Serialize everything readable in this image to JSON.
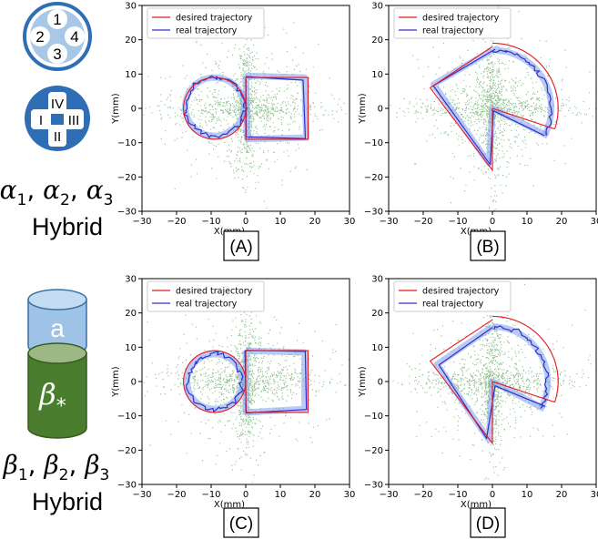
{
  "left_panel": {
    "top_group": {
      "small_circle_labels": [
        "1",
        "2",
        "3",
        "4"
      ],
      "large_circle_labels": [
        "IV",
        "I",
        "III",
        "II"
      ],
      "formula": {
        "base": "α",
        "subs": [
          "1",
          "2",
          "3"
        ]
      },
      "caption": "Hybrid",
      "colors": {
        "light_fill": "#a9c8e8",
        "dark_fill": "#2f6eb5"
      }
    },
    "bottom_group": {
      "small_cylinder_label": "a",
      "large_cylinder_label": {
        "base": "β",
        "sub": "*"
      },
      "formula": {
        "base": "β",
        "subs": [
          "1",
          "2",
          "3"
        ]
      },
      "caption": "Hybrid",
      "colors": {
        "small_top": "#c4dcf2",
        "small_body": "#9fc3e6",
        "large_top": "#9cb985",
        "large_body": "#4a7d2e"
      }
    }
  },
  "legend": {
    "desired": "desired trajectory",
    "real": "real trajectory"
  },
  "colors": {
    "desired": "#e8171e",
    "real": "#3030d0",
    "band": "#7f9ff0",
    "scatter": "#2a8a2a"
  },
  "chart_data": [
    {
      "id": "A",
      "panel_label": "(A)",
      "type": "line",
      "xlabel": "X(mm)",
      "ylabel": "Y(mm)",
      "xlim": [
        -30,
        30
      ],
      "ylim": [
        -30,
        30
      ],
      "xticks": [
        "−30",
        "−20",
        "−10",
        "0",
        "10",
        "20",
        "30"
      ],
      "yticks": [
        "−30",
        "−20",
        "−10",
        "0",
        "10",
        "20",
        "30"
      ],
      "legend_position": "top-left",
      "desired_trajectory": {
        "shape": "circle + square",
        "circle_center": [
          -9,
          0
        ],
        "circle_radius": 9,
        "square": [
          [
            0,
            9
          ],
          [
            18,
            9
          ],
          [
            18,
            -9
          ],
          [
            0,
            -9
          ]
        ]
      },
      "real_trajectory": {
        "shape": "circle + square",
        "circle_center": [
          -9,
          0.5
        ],
        "circle_radius": 8.5,
        "square": [
          [
            0,
            9.5
          ],
          [
            17,
            9
          ],
          [
            17.5,
            -8.5
          ],
          [
            0.5,
            -9
          ]
        ]
      }
    },
    {
      "id": "B",
      "panel_label": "(B)",
      "type": "line",
      "xlabel": "X(mm)",
      "ylabel": "Y(mm)",
      "xlim": [
        -30,
        30
      ],
      "ylim": [
        -30,
        30
      ],
      "xticks": [
        "−30",
        "−20",
        "−10",
        "0",
        "10",
        "20",
        "30"
      ],
      "yticks": [
        "−30",
        "−20",
        "−10",
        "0",
        "10",
        "20",
        "30"
      ],
      "legend_position": "top-left",
      "desired_trajectory": {
        "shape": "diamond + half-circle",
        "points": [
          [
            0,
            18
          ],
          [
            -18,
            6
          ],
          [
            0,
            -18
          ],
          [
            0,
            0
          ],
          [
            18,
            -6
          ]
        ],
        "arc_radius": 19
      },
      "real_trajectory": {
        "shape": "diamond + half-circle",
        "points": [
          [
            0,
            17
          ],
          [
            -17,
            7
          ],
          [
            -1,
            -16
          ],
          [
            0,
            0
          ],
          [
            16,
            -8
          ]
        ],
        "arc_radius": 17
      }
    },
    {
      "id": "C",
      "panel_label": "(C)",
      "type": "line",
      "xlabel": "X(mm)",
      "ylabel": "Y(mm)",
      "xlim": [
        -30,
        30
      ],
      "ylim": [
        -30,
        30
      ],
      "xticks": [
        "−30",
        "−20",
        "−10",
        "0",
        "10",
        "20",
        "30"
      ],
      "yticks": [
        "−30",
        "−20",
        "−10",
        "0",
        "10",
        "20",
        "30"
      ],
      "legend_position": "top-left",
      "desired_trajectory": {
        "shape": "circle + square",
        "circle_center": [
          -9,
          0
        ],
        "circle_radius": 9,
        "square": [
          [
            0,
            9
          ],
          [
            18,
            9
          ],
          [
            18,
            -9
          ],
          [
            0,
            -9
          ]
        ]
      },
      "real_trajectory": {
        "shape": "circle + square",
        "circle_center": [
          -9,
          0
        ],
        "circle_radius": 8,
        "square": [
          [
            0,
            9
          ],
          [
            17,
            8.5
          ],
          [
            17,
            -8
          ],
          [
            0,
            -9
          ]
        ]
      }
    },
    {
      "id": "D",
      "panel_label": "(D)",
      "type": "line",
      "xlabel": "X(mm)",
      "ylabel": "Y(mm)",
      "xlim": [
        -30,
        30
      ],
      "ylim": [
        -30,
        30
      ],
      "xticks": [
        "−30",
        "−20",
        "−10",
        "0",
        "10",
        "20",
        "30"
      ],
      "yticks": [
        "−30",
        "−20",
        "−10",
        "0",
        "10",
        "20",
        "30"
      ],
      "legend_position": "top-left",
      "desired_trajectory": {
        "shape": "diamond + half-circle",
        "points": [
          [
            0,
            18
          ],
          [
            -18,
            6
          ],
          [
            0,
            -18
          ],
          [
            0,
            0
          ],
          [
            18,
            -6
          ]
        ],
        "arc_radius": 19
      },
      "real_trajectory": {
        "shape": "diamond + half-circle",
        "points": [
          [
            0,
            16
          ],
          [
            -16,
            5
          ],
          [
            -1,
            -17
          ],
          [
            0,
            0
          ],
          [
            15,
            -8
          ]
        ],
        "arc_radius": 16
      }
    }
  ]
}
